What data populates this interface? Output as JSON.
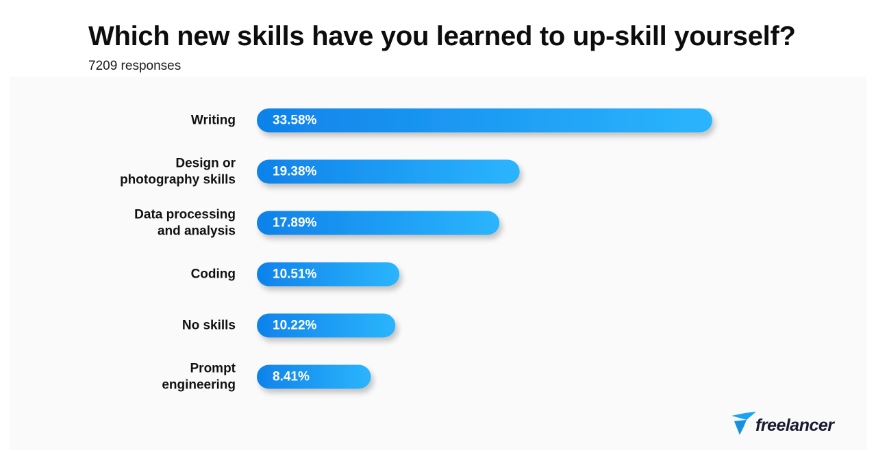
{
  "header": {
    "title": "Which new skills have you learned to up-skill yourself?",
    "subtitle": "7209 responses"
  },
  "brand": {
    "name": "freelancer",
    "icon": "freelancer-bird-icon",
    "color": "#1ba3f0"
  },
  "colors": {
    "bar_start": "#0f82ea",
    "bar_end": "#2bb5fd",
    "label": "#111111",
    "value_text": "#ffffff"
  },
  "chart_data": {
    "type": "bar",
    "orientation": "horizontal",
    "title": "Which new skills have you learned to up-skill yourself?",
    "subtitle": "7209 responses",
    "categories": [
      [
        "Writing"
      ],
      [
        "Design or",
        "photography skills"
      ],
      [
        "Data processing",
        "and analysis"
      ],
      [
        "Coding"
      ],
      [
        "No skills"
      ],
      [
        "Prompt",
        "engineering"
      ]
    ],
    "values": [
      33.58,
      19.38,
      17.89,
      10.51,
      10.22,
      8.41
    ],
    "value_labels": [
      "33.58%",
      "19.38%",
      "17.89%",
      "10.51%",
      "10.22%",
      "8.41%"
    ],
    "unit": "%",
    "grid": false,
    "legend": "none"
  }
}
